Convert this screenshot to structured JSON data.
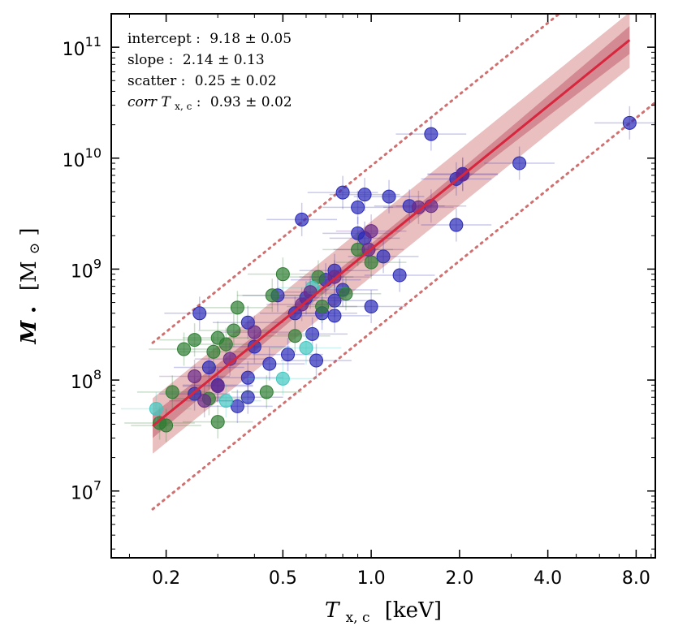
{
  "chart_data": {
    "type": "scatter",
    "xscale": "log",
    "yscale": "log",
    "xlim": [
      0.13,
      9.3
    ],
    "ylim": [
      2500000,
      200000000000
    ],
    "xlabel": "T",
    "xlabel_sub": "x, c",
    "xlabel_unit": "[keV]",
    "ylabel": "M",
    "ylabel_sub": "•",
    "ylabel_unit": "[M",
    "ylabel_unit_sub": "⊙",
    "ylabel_unit_close": "]",
    "xticks": [
      {
        "value": 0.2,
        "label": "0.2"
      },
      {
        "value": 0.5,
        "label": "0.5"
      },
      {
        "value": 1.0,
        "label": "1.0"
      },
      {
        "value": 2.0,
        "label": "2.0"
      },
      {
        "value": 4.0,
        "label": "4.0"
      },
      {
        "value": 8.0,
        "label": "8.0"
      }
    ],
    "yticks": [
      {
        "value": 10000000,
        "base": "10",
        "exp": "7"
      },
      {
        "value": 100000000,
        "base": "10",
        "exp": "8"
      },
      {
        "value": 1000000000,
        "base": "10",
        "exp": "9"
      },
      {
        "value": 10000000000,
        "base": "10",
        "exp": "10"
      },
      {
        "value": 100000000000,
        "base": "10",
        "exp": "11"
      }
    ],
    "annotations": [
      {
        "label": "intercept :",
        "value": "9.18 ± 0.05"
      },
      {
        "label": "slope :",
        "value": "2.14 ± 0.13"
      },
      {
        "label": "scatter :",
        "value": "0.25 ± 0.02"
      },
      {
        "label": "corr T",
        "sub": "x, c",
        "label_end": " :",
        "value": "0.93 ± 0.02"
      }
    ],
    "fit": {
      "intercept": 9.18,
      "slope": 2.14,
      "pivot_keV": 1.0,
      "intrinsic_scatter_dex": 0.25,
      "slope_err": 0.13,
      "intercept_err": 0.05,
      "x_range": [
        0.18,
        7.6
      ],
      "dotted_offset_dex": 0.75,
      "color": "#d7263d",
      "band_color": "#d98a8a"
    },
    "series": [
      {
        "name": "blue",
        "color": "#2a2ab8",
        "points": [
          [
            7.6,
            20800000000.0
          ],
          [
            3.2,
            9000000000.0
          ],
          [
            2.05,
            7200000000.0
          ],
          [
            1.95,
            6500000000.0
          ],
          [
            1.95,
            2500000000.0
          ],
          [
            1.6,
            16500000000.0
          ],
          [
            1.35,
            3700000000.0
          ],
          [
            1.15,
            4500000000.0
          ],
          [
            1.25,
            880000000.0
          ],
          [
            1.1,
            1300000000.0
          ],
          [
            1.0,
            460000000.0
          ],
          [
            0.95,
            4700000000.0
          ],
          [
            0.9,
            3600000000.0
          ],
          [
            0.9,
            2100000000.0
          ],
          [
            0.95,
            1900000000.0
          ],
          [
            0.8,
            4900000000.0
          ],
          [
            0.8,
            650000000.0
          ],
          [
            0.75,
            970000000.0
          ],
          [
            0.75,
            520000000.0
          ],
          [
            0.75,
            380000000.0
          ],
          [
            0.7,
            800000000.0
          ],
          [
            0.68,
            400000000.0
          ],
          [
            0.65,
            150000000.0
          ],
          [
            0.63,
            260000000.0
          ],
          [
            0.58,
            2800000000.0
          ],
          [
            0.6,
            550000000.0
          ],
          [
            0.55,
            400000000.0
          ],
          [
            0.52,
            170000000.0
          ],
          [
            0.48,
            580000000.0
          ],
          [
            0.45,
            140000000.0
          ],
          [
            0.4,
            200000000.0
          ],
          [
            0.38,
            330000000.0
          ],
          [
            0.38,
            105000000.0
          ],
          [
            0.38,
            70000000.0
          ],
          [
            0.35,
            58000000.0
          ],
          [
            0.3,
            90000000.0
          ],
          [
            0.28,
            130000000.0
          ],
          [
            0.26,
            400000000.0
          ],
          [
            0.25,
            75000000.0
          ]
        ]
      },
      {
        "name": "green",
        "color": "#2e7d32",
        "points": [
          [
            0.5,
            900000000.0
          ],
          [
            0.46,
            580000000.0
          ],
          [
            0.44,
            78000000.0
          ],
          [
            0.35,
            450000000.0
          ],
          [
            0.34,
            280000000.0
          ],
          [
            0.32,
            210000000.0
          ],
          [
            0.3,
            240000000.0
          ],
          [
            0.29,
            180000000.0
          ],
          [
            0.28,
            68000000.0
          ],
          [
            0.3,
            42000000.0
          ],
          [
            0.25,
            230000000.0
          ],
          [
            0.23,
            190000000.0
          ],
          [
            0.21,
            78000000.0
          ],
          [
            0.19,
            41000000.0
          ],
          [
            0.2,
            39000000.0
          ],
          [
            0.66,
            850000000.0
          ],
          [
            0.68,
            460000000.0
          ],
          [
            0.82,
            600000000.0
          ],
          [
            0.9,
            1500000000.0
          ],
          [
            1.0,
            1150000000.0
          ],
          [
            0.55,
            250000000.0
          ]
        ]
      },
      {
        "name": "cyan",
        "color": "#40c8c0",
        "points": [
          [
            0.185,
            55000000.0
          ],
          [
            0.32,
            65000000.0
          ],
          [
            0.5,
            103000000.0
          ],
          [
            0.6,
            195000000.0
          ],
          [
            0.63,
            680000000.0
          ]
        ]
      },
      {
        "name": "purple",
        "color": "#6a2a8a",
        "points": [
          [
            2.05,
            7100000000.0
          ],
          [
            1.6,
            3700000000.0
          ],
          [
            1.45,
            3600000000.0
          ],
          [
            1.0,
            2200000000.0
          ],
          [
            0.98,
            1500000000.0
          ],
          [
            0.75,
            850000000.0
          ],
          [
            0.62,
            620000000.0
          ],
          [
            0.58,
            480000000.0
          ],
          [
            0.4,
            270000000.0
          ],
          [
            0.33,
            155000000.0
          ],
          [
            0.3,
            88000000.0
          ],
          [
            0.25,
            108000000.0
          ],
          [
            0.27,
            65000000.0
          ]
        ]
      }
    ]
  }
}
